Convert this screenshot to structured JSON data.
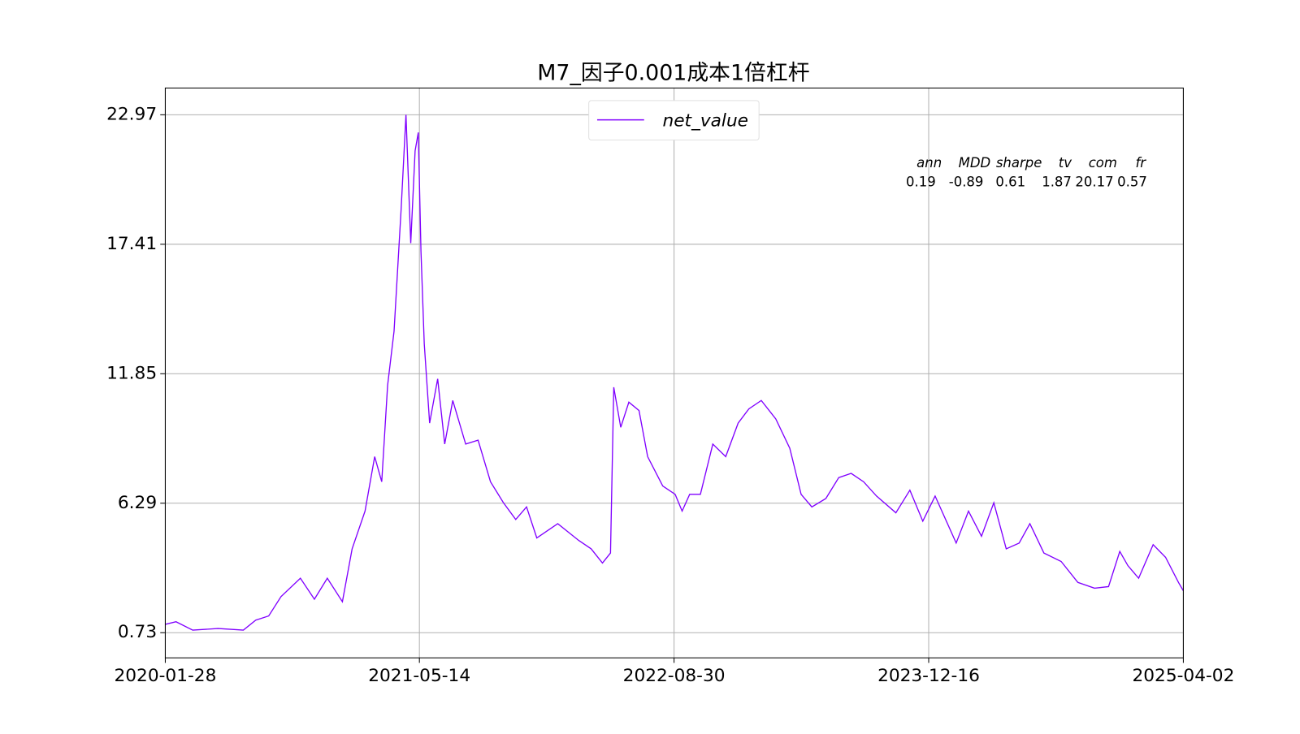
{
  "chart_data": {
    "type": "line",
    "title": "M7_因子0.001成本1倍杠杆",
    "x": [
      "2020-01-28",
      "2020-02-17",
      "2020-03-19",
      "2020-05-05",
      "2020-06-21",
      "2020-07-14",
      "2020-08-07",
      "2020-08-30",
      "2020-10-05",
      "2020-10-31",
      "2020-11-24",
      "2020-12-22",
      "2021-01-09",
      "2021-02-02",
      "2021-02-20",
      "2021-03-05",
      "2021-03-16",
      "2021-03-28",
      "2021-04-10",
      "2021-04-19",
      "2021-04-28",
      "2021-05-06",
      "2021-05-12",
      "2021-05-17",
      "2021-05-23",
      "2021-06-02",
      "2021-06-17",
      "2021-06-30",
      "2021-07-15",
      "2021-08-08",
      "2021-08-31",
      "2021-09-23",
      "2021-10-17",
      "2021-11-09",
      "2021-11-29",
      "2021-12-18",
      "2022-01-26",
      "2022-03-06",
      "2022-03-29",
      "2022-04-19",
      "2022-05-04",
      "2022-05-10",
      "2022-05-23",
      "2022-06-07",
      "2022-06-26",
      "2022-07-12",
      "2022-08-09",
      "2022-09-01",
      "2022-09-14",
      "2022-09-28",
      "2022-10-18",
      "2022-11-10",
      "2022-12-04",
      "2022-12-27",
      "2023-01-16",
      "2023-02-08",
      "2023-03-07",
      "2023-04-02",
      "2023-04-23",
      "2023-05-13",
      "2023-06-08",
      "2023-07-02",
      "2023-07-25",
      "2023-08-17",
      "2023-09-10",
      "2023-10-16",
      "2023-11-11",
      "2023-12-05",
      "2023-12-28",
      "2024-02-05",
      "2024-02-28",
      "2024-03-23",
      "2024-04-15",
      "2024-05-08",
      "2024-06-01",
      "2024-06-21",
      "2024-07-17",
      "2024-08-18",
      "2024-09-18",
      "2024-10-19",
      "2024-11-14",
      "2024-12-05",
      "2024-12-20",
      "2025-01-09",
      "2025-02-05",
      "2025-02-28",
      "2025-03-24",
      "2025-04-02"
    ],
    "series": [
      {
        "name": "net_value",
        "color": "#8000ff",
        "values": [
          1.09,
          1.2,
          0.84,
          0.91,
          0.84,
          1.27,
          1.45,
          2.28,
          3.07,
          2.17,
          3.07,
          2.06,
          4.33,
          5.95,
          8.29,
          7.21,
          11.35,
          13.68,
          18.9,
          22.97,
          17.46,
          21.42,
          22.21,
          17.1,
          13.14,
          9.73,
          11.63,
          8.83,
          10.7,
          8.83,
          9.0,
          7.21,
          6.31,
          5.59,
          6.13,
          4.8,
          5.41,
          4.69,
          4.33,
          3.72,
          4.15,
          11.27,
          9.55,
          10.63,
          10.27,
          8.29,
          7.03,
          6.67,
          5.95,
          6.67,
          6.67,
          8.83,
          8.29,
          9.73,
          10.34,
          10.7,
          9.91,
          8.65,
          6.67,
          6.13,
          6.49,
          7.39,
          7.57,
          7.21,
          6.6,
          5.88,
          6.85,
          5.52,
          6.6,
          4.58,
          5.95,
          4.87,
          6.31,
          4.33,
          4.58,
          5.41,
          4.15,
          3.79,
          2.89,
          2.64,
          2.71,
          4.22,
          3.61,
          3.07,
          4.51,
          3.97,
          2.89,
          2.53
        ]
      }
    ],
    "xlim": [
      "2020-01-28",
      "2025-04-02"
    ],
    "xticks": [
      "2020-01-28",
      "2021-05-14",
      "2022-08-30",
      "2023-12-16",
      "2025-04-02"
    ],
    "ylim": [
      -0.35,
      24.12
    ],
    "yticks": [
      0.73,
      6.29,
      11.85,
      17.41,
      22.97
    ],
    "grid": true,
    "legend": "upper center",
    "stats": {
      "headers": [
        "ann",
        "MDD",
        "sharpe",
        "tv",
        "com",
        "fr"
      ],
      "values": [
        0.19,
        -0.89,
        0.61,
        1.87,
        20.17,
        0.57
      ]
    }
  }
}
